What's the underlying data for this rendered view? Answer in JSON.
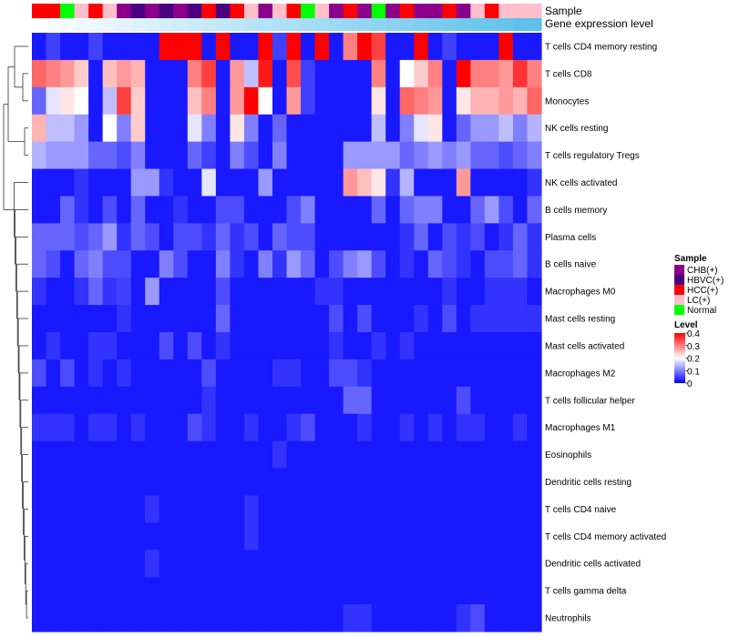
{
  "chart_data": {
    "type": "heatmap",
    "title": "",
    "annotation_titles": {
      "sample": "Sample",
      "gene_expression": "Gene expression level"
    },
    "sample_legend": {
      "title": "Sample",
      "entries": [
        {
          "label": "CHB(+)",
          "color": "#8b008b"
        },
        {
          "label": "HBVC(+)",
          "color": "#4b0082"
        },
        {
          "label": "HCC(+)",
          "color": "#ff0000"
        },
        {
          "label": "LC(+)",
          "color": "#ffc0cb"
        },
        {
          "label": "Normal",
          "color": "#00ff00"
        }
      ]
    },
    "level_legend": {
      "title": "Level",
      "ticks": [
        "0.4",
        "0.3",
        "0.2",
        "0.1",
        "0"
      ],
      "range": [
        0,
        0.4
      ],
      "colors": {
        "low": "#0000ff",
        "mid": "#ffffff",
        "high": "#ff0000"
      }
    },
    "sample_groups": [
      "HCC(+)",
      "HCC(+)",
      "Normal",
      "LC(+)",
      "HCC(+)",
      "LC(+)",
      "CHB(+)",
      "HBVC(+)",
      "CHB(+)",
      "HBVC(+)",
      "CHB(+)",
      "HBVC(+)",
      "HCC(+)",
      "HBVC(+)",
      "HCC(+)",
      "LC(+)",
      "CHB(+)",
      "LC(+)",
      "HCC(+)",
      "Normal",
      "LC(+)",
      "CHB(+)",
      "HCC(+)",
      "CHB(+)",
      "Normal",
      "CHB(+)",
      "HCC(+)",
      "CHB(+)",
      "CHB(+)",
      "HCC(+)",
      "CHB(+)",
      "LC(+)",
      "HCC(+)",
      "LC(+)",
      "LC(+)",
      "LC(+)"
    ],
    "gene_expression_values": [
      0.0,
      0.03,
      0.06,
      0.09,
      0.11,
      0.14,
      0.17,
      0.2,
      0.23,
      0.26,
      0.29,
      0.31,
      0.34,
      0.37,
      0.4,
      0.43,
      0.46,
      0.49,
      0.51,
      0.54,
      0.57,
      0.6,
      0.63,
      0.66,
      0.69,
      0.71,
      0.74,
      0.77,
      0.8,
      0.83,
      0.86,
      0.89,
      0.91,
      0.94,
      0.97,
      1.0
    ],
    "rows": [
      "T cells CD4 memory resting",
      "T cells CD8",
      "Monocytes",
      "NK cells resting",
      "T cells regulatory  Tregs",
      "NK cells activated",
      "B cells memory",
      "Plasma cells",
      "B cells naive",
      "Macrophages M0",
      "Mast cells resting",
      "Mast cells activated",
      "Macrophages M2",
      "T cells follicular helper",
      "Macrophages M1",
      "Eosinophils",
      "Dendritic cells resting",
      "T cells CD4 naive",
      "T cells CD4 memory activated",
      "Dendritic cells activated",
      "T cells gamma delta",
      "Neutrophils"
    ],
    "values": [
      [
        0.02,
        0.05,
        0.02,
        0.02,
        0.05,
        0.02,
        0.02,
        0.02,
        0.02,
        0.4,
        0.4,
        0.4,
        0.02,
        0.4,
        0.02,
        0.02,
        0.4,
        0.05,
        0.4,
        0.02,
        0.4,
        0.02,
        0.3,
        0.4,
        0.35,
        0.02,
        0.02,
        0.4,
        0.02,
        0.05,
        0.02,
        0.02,
        0.02,
        0.4,
        0.02,
        0.02
      ],
      [
        0.32,
        0.3,
        0.28,
        0.24,
        0.02,
        0.25,
        0.28,
        0.26,
        0.02,
        0.02,
        0.02,
        0.3,
        0.35,
        0.02,
        0.28,
        0.15,
        0.38,
        0.02,
        0.34,
        0.05,
        0.02,
        0.02,
        0.02,
        0.02,
        0.3,
        0.02,
        0.2,
        0.24,
        0.3,
        0.02,
        0.4,
        0.3,
        0.3,
        0.28,
        0.36,
        0.3
      ],
      [
        0.08,
        0.18,
        0.22,
        0.2,
        0.02,
        0.15,
        0.35,
        0.24,
        0.02,
        0.02,
        0.02,
        0.25,
        0.3,
        0.02,
        0.28,
        0.4,
        0.2,
        0.02,
        0.28,
        0.05,
        0.02,
        0.02,
        0.02,
        0.02,
        0.22,
        0.02,
        0.32,
        0.3,
        0.28,
        0.02,
        0.22,
        0.26,
        0.26,
        0.28,
        0.26,
        0.32
      ],
      [
        0.26,
        0.15,
        0.15,
        0.12,
        0.02,
        0.2,
        0.1,
        0.24,
        0.02,
        0.02,
        0.02,
        0.18,
        0.1,
        0.02,
        0.22,
        0.1,
        0.02,
        0.08,
        0.02,
        0.02,
        0.02,
        0.02,
        0.02,
        0.02,
        0.15,
        0.02,
        0.1,
        0.18,
        0.22,
        0.02,
        0.08,
        0.12,
        0.12,
        0.15,
        0.1,
        0.14
      ],
      [
        0.14,
        0.12,
        0.12,
        0.12,
        0.08,
        0.08,
        0.06,
        0.1,
        0.02,
        0.02,
        0.02,
        0.08,
        0.05,
        0.02,
        0.1,
        0.06,
        0.02,
        0.1,
        0.02,
        0.02,
        0.02,
        0.02,
        0.12,
        0.12,
        0.12,
        0.12,
        0.08,
        0.1,
        0.12,
        0.1,
        0.12,
        0.08,
        0.08,
        0.06,
        0.08,
        0.1
      ],
      [
        0.02,
        0.02,
        0.02,
        0.04,
        0.02,
        0.02,
        0.02,
        0.12,
        0.12,
        0.04,
        0.02,
        0.02,
        0.18,
        0.02,
        0.02,
        0.02,
        0.12,
        0.02,
        0.02,
        0.02,
        0.02,
        0.02,
        0.28,
        0.25,
        0.22,
        0.04,
        0.14,
        0.02,
        0.02,
        0.02,
        0.28,
        0.02,
        0.02,
        0.02,
        0.02,
        0.04
      ],
      [
        0.02,
        0.02,
        0.08,
        0.04,
        0.02,
        0.06,
        0.02,
        0.08,
        0.02,
        0.02,
        0.04,
        0.02,
        0.02,
        0.06,
        0.06,
        0.02,
        0.02,
        0.02,
        0.06,
        0.1,
        0.02,
        0.02,
        0.02,
        0.02,
        0.08,
        0.02,
        0.08,
        0.1,
        0.1,
        0.02,
        0.02,
        0.08,
        0.12,
        0.06,
        0.02,
        0.08
      ],
      [
        0.08,
        0.08,
        0.08,
        0.06,
        0.08,
        0.12,
        0.04,
        0.08,
        0.06,
        0.02,
        0.06,
        0.06,
        0.04,
        0.08,
        0.04,
        0.06,
        0.02,
        0.08,
        0.06,
        0.06,
        0.02,
        0.02,
        0.02,
        0.02,
        0.02,
        0.02,
        0.04,
        0.08,
        0.02,
        0.06,
        0.04,
        0.06,
        0.02,
        0.04,
        0.08,
        0.04
      ],
      [
        0.08,
        0.06,
        0.02,
        0.08,
        0.1,
        0.06,
        0.06,
        0.02,
        0.02,
        0.1,
        0.06,
        0.02,
        0.02,
        0.1,
        0.04,
        0.02,
        0.1,
        0.04,
        0.12,
        0.08,
        0.02,
        0.06,
        0.1,
        0.12,
        0.06,
        0.02,
        0.04,
        0.02,
        0.08,
        0.06,
        0.04,
        0.02,
        0.06,
        0.06,
        0.08,
        0.04
      ],
      [
        0.04,
        0.02,
        0.02,
        0.04,
        0.08,
        0.04,
        0.05,
        0.02,
        0.12,
        0.02,
        0.02,
        0.02,
        0.02,
        0.06,
        0.02,
        0.02,
        0.02,
        0.02,
        0.02,
        0.02,
        0.04,
        0.04,
        0.02,
        0.02,
        0.02,
        0.02,
        0.02,
        0.02,
        0.02,
        0.04,
        0.02,
        0.02,
        0.04,
        0.04,
        0.04,
        0.02
      ],
      [
        0.02,
        0.02,
        0.02,
        0.02,
        0.02,
        0.02,
        0.04,
        0.02,
        0.02,
        0.02,
        0.02,
        0.02,
        0.02,
        0.08,
        0.02,
        0.02,
        0.02,
        0.02,
        0.02,
        0.02,
        0.02,
        0.06,
        0.02,
        0.06,
        0.02,
        0.02,
        0.02,
        0.04,
        0.02,
        0.06,
        0.02,
        0.04,
        0.04,
        0.04,
        0.04,
        0.04
      ],
      [
        0.02,
        0.04,
        0.02,
        0.02,
        0.04,
        0.04,
        0.02,
        0.02,
        0.02,
        0.06,
        0.02,
        0.06,
        0.02,
        0.04,
        0.02,
        0.02,
        0.02,
        0.02,
        0.02,
        0.02,
        0.02,
        0.04,
        0.02,
        0.02,
        0.04,
        0.02,
        0.04,
        0.02,
        0.02,
        0.02,
        0.02,
        0.02,
        0.02,
        0.02,
        0.02,
        0.02
      ],
      [
        0.06,
        0.02,
        0.06,
        0.02,
        0.04,
        0.02,
        0.04,
        0.02,
        0.02,
        0.02,
        0.02,
        0.02,
        0.06,
        0.02,
        0.02,
        0.02,
        0.02,
        0.04,
        0.04,
        0.02,
        0.02,
        0.06,
        0.06,
        0.04,
        0.02,
        0.02,
        0.02,
        0.02,
        0.02,
        0.02,
        0.02,
        0.02,
        0.02,
        0.02,
        0.02,
        0.02
      ],
      [
        0.02,
        0.02,
        0.02,
        0.02,
        0.02,
        0.02,
        0.02,
        0.02,
        0.02,
        0.02,
        0.02,
        0.02,
        0.04,
        0.02,
        0.02,
        0.02,
        0.02,
        0.02,
        0.02,
        0.02,
        0.02,
        0.02,
        0.08,
        0.08,
        0.02,
        0.02,
        0.02,
        0.02,
        0.02,
        0.02,
        0.06,
        0.02,
        0.02,
        0.02,
        0.02,
        0.02
      ],
      [
        0.04,
        0.04,
        0.04,
        0.02,
        0.04,
        0.04,
        0.02,
        0.04,
        0.02,
        0.02,
        0.02,
        0.06,
        0.04,
        0.02,
        0.02,
        0.04,
        0.02,
        0.02,
        0.04,
        0.06,
        0.02,
        0.02,
        0.02,
        0.04,
        0.02,
        0.02,
        0.04,
        0.02,
        0.04,
        0.02,
        0.04,
        0.04,
        0.02,
        0.02,
        0.04,
        0.02
      ],
      [
        0.02,
        0.02,
        0.02,
        0.02,
        0.02,
        0.02,
        0.02,
        0.02,
        0.02,
        0.02,
        0.02,
        0.02,
        0.02,
        0.02,
        0.02,
        0.02,
        0.02,
        0.04,
        0.02,
        0.02,
        0.02,
        0.02,
        0.02,
        0.02,
        0.02,
        0.02,
        0.02,
        0.02,
        0.02,
        0.02,
        0.02,
        0.02,
        0.02,
        0.02,
        0.02,
        0.02
      ],
      [
        0.02,
        0.02,
        0.02,
        0.02,
        0.02,
        0.02,
        0.02,
        0.02,
        0.02,
        0.02,
        0.02,
        0.02,
        0.02,
        0.02,
        0.02,
        0.02,
        0.02,
        0.02,
        0.02,
        0.02,
        0.02,
        0.02,
        0.02,
        0.02,
        0.02,
        0.02,
        0.02,
        0.02,
        0.02,
        0.02,
        0.02,
        0.02,
        0.02,
        0.02,
        0.02,
        0.02
      ],
      [
        0.02,
        0.02,
        0.02,
        0.02,
        0.02,
        0.02,
        0.02,
        0.02,
        0.04,
        0.02,
        0.02,
        0.02,
        0.02,
        0.02,
        0.02,
        0.04,
        0.02,
        0.02,
        0.02,
        0.02,
        0.02,
        0.02,
        0.02,
        0.02,
        0.02,
        0.02,
        0.02,
        0.02,
        0.02,
        0.02,
        0.02,
        0.02,
        0.02,
        0.02,
        0.02,
        0.02
      ],
      [
        0.02,
        0.02,
        0.02,
        0.02,
        0.02,
        0.02,
        0.02,
        0.02,
        0.02,
        0.02,
        0.02,
        0.02,
        0.02,
        0.02,
        0.02,
        0.04,
        0.02,
        0.02,
        0.02,
        0.02,
        0.02,
        0.02,
        0.02,
        0.02,
        0.02,
        0.02,
        0.02,
        0.02,
        0.02,
        0.02,
        0.02,
        0.02,
        0.02,
        0.02,
        0.02,
        0.02
      ],
      [
        0.02,
        0.02,
        0.02,
        0.02,
        0.02,
        0.02,
        0.02,
        0.02,
        0.04,
        0.02,
        0.02,
        0.02,
        0.02,
        0.02,
        0.02,
        0.02,
        0.02,
        0.02,
        0.02,
        0.02,
        0.02,
        0.02,
        0.02,
        0.02,
        0.02,
        0.02,
        0.02,
        0.02,
        0.02,
        0.02,
        0.02,
        0.02,
        0.02,
        0.02,
        0.02,
        0.02
      ],
      [
        0.02,
        0.02,
        0.02,
        0.02,
        0.02,
        0.02,
        0.02,
        0.02,
        0.02,
        0.02,
        0.02,
        0.02,
        0.02,
        0.02,
        0.02,
        0.02,
        0.02,
        0.02,
        0.02,
        0.02,
        0.02,
        0.02,
        0.02,
        0.02,
        0.02,
        0.02,
        0.02,
        0.02,
        0.02,
        0.02,
        0.02,
        0.02,
        0.02,
        0.02,
        0.02,
        0.02
      ],
      [
        0.02,
        0.02,
        0.02,
        0.02,
        0.02,
        0.02,
        0.02,
        0.02,
        0.02,
        0.02,
        0.02,
        0.02,
        0.02,
        0.02,
        0.02,
        0.02,
        0.02,
        0.02,
        0.02,
        0.02,
        0.02,
        0.02,
        0.04,
        0.04,
        0.02,
        0.02,
        0.02,
        0.02,
        0.02,
        0.02,
        0.04,
        0.06,
        0.02,
        0.02,
        0.02,
        0.02
      ]
    ]
  }
}
